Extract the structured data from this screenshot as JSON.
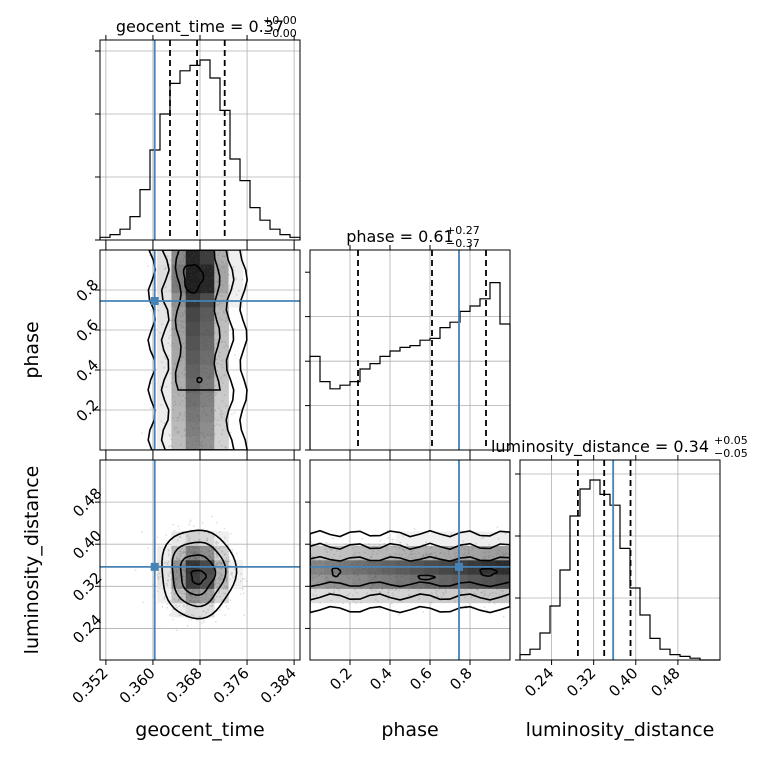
{
  "chart_data": {
    "type": "corner",
    "parameters": [
      "geocent_time",
      "phase",
      "luminosity_distance"
    ],
    "truth": {
      "geocent_time": 0.3603,
      "phase": 0.745,
      "luminosity_distance": 0.357
    },
    "colors": {
      "truth": "#4682b4",
      "hist": "#000000",
      "grid": "#b0b0b0",
      "scatter": "#555555"
    },
    "titles": [
      {
        "base": "geocent_time = 0.37",
        "sup": "+0.00",
        "sub": "−0.00"
      },
      {
        "base": "phase = 0.61",
        "sup": "+0.27",
        "sub": "−0.37"
      },
      {
        "base": "luminosity_distance = 0.34",
        "sup": "+0.05",
        "sub": "−0.05"
      }
    ],
    "ranges": {
      "geocent_time": [
        0.351,
        0.385
      ],
      "phase": [
        0.0,
        1.0
      ],
      "luminosity_distance": [
        0.18,
        0.56
      ]
    },
    "quantiles": {
      "geocent_time": [
        0.3629,
        0.3675,
        0.3722
      ],
      "phase": [
        0.24,
        0.61,
        0.88
      ],
      "luminosity_distance": [
        0.29,
        0.34,
        0.39
      ]
    },
    "ticks": {
      "geocent_time": {
        "values": [
          0.352,
          0.36,
          0.368,
          0.376,
          0.384
        ],
        "labels": [
          "0.352",
          "0.360",
          "0.368",
          "0.376",
          "0.384"
        ]
      },
      "phase_x": {
        "values": [
          0.2,
          0.4,
          0.6,
          0.8
        ],
        "labels": [
          "0.2",
          "0.4",
          "0.6",
          "0.8"
        ]
      },
      "phase_y": {
        "values": [
          0.2,
          0.4,
          0.6,
          0.8
        ],
        "labels": [
          "0.2",
          "0.4",
          "0.6",
          "0.8"
        ]
      },
      "luminosity_distance": {
        "values": [
          0.24,
          0.32,
          0.4,
          0.48
        ],
        "labels": [
          "0.24",
          "0.32",
          "0.40",
          "0.48"
        ]
      }
    },
    "hist_geocent_time": [
      0.015,
      0.03,
      0.06,
      0.13,
      0.28,
      0.5,
      0.7,
      0.87,
      0.94,
      0.97,
      1.0,
      0.9,
      0.72,
      0.45,
      0.33,
      0.18,
      0.11,
      0.06,
      0.03,
      0.015
    ],
    "hist_phase": [
      0.52,
      0.38,
      0.34,
      0.36,
      0.38,
      0.45,
      0.48,
      0.52,
      0.55,
      0.57,
      0.58,
      0.61,
      0.62,
      0.68,
      0.71,
      0.77,
      0.8,
      0.84,
      0.93,
      0.7
    ],
    "hist_luminosity_distance": [
      0.03,
      0.06,
      0.15,
      0.3,
      0.5,
      0.8,
      0.95,
      1.0,
      0.92,
      0.86,
      0.62,
      0.4,
      0.25,
      0.12,
      0.06,
      0.03,
      0.02,
      0.01,
      0.0,
      0.0
    ],
    "axis_labels": {
      "x": [
        "geocent_time",
        "phase",
        "luminosity_distance"
      ],
      "y": [
        "phase",
        "luminosity_distance"
      ]
    }
  }
}
